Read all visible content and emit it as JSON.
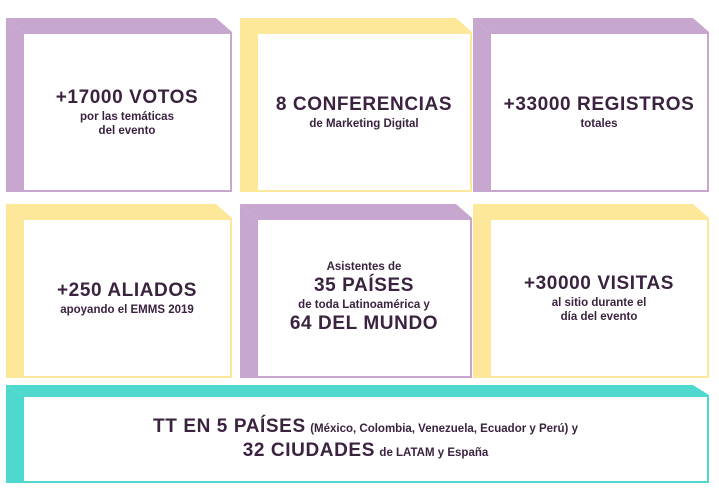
{
  "colors": {
    "purple": "#c7a7d0",
    "yellow": "#fde89a",
    "teal": "#4fd8cd",
    "text": "#3b2340"
  },
  "cards": [
    {
      "headline": "+17000 VOTOS",
      "line1": "por las temáticas",
      "line2": "del evento"
    },
    {
      "headline": "8 CONFERENCIAS",
      "line1": "de Marketing Digital"
    },
    {
      "headline": "+33000 REGISTROS",
      "line1": "totales"
    },
    {
      "headline": "+250 ALIADOS",
      "line1": "apoyando el EMMS 2019"
    },
    {
      "intro": "Asistentes de",
      "headline": "35 PAÍSES",
      "line1": "de toda Latinoamérica y",
      "headline2": "64 DEL MUNDO"
    },
    {
      "headline": "+30000 VISITAS",
      "line1": "al sitio durante el",
      "line2": "día del evento"
    }
  ],
  "banner": {
    "headline1": "TT EN 5 PAÍSES",
    "detail1": "(México, Colombia, Venezuela, Ecuador y Perú) y",
    "headline2": "32 CIUDADES",
    "detail2": "de LATAM y España"
  }
}
